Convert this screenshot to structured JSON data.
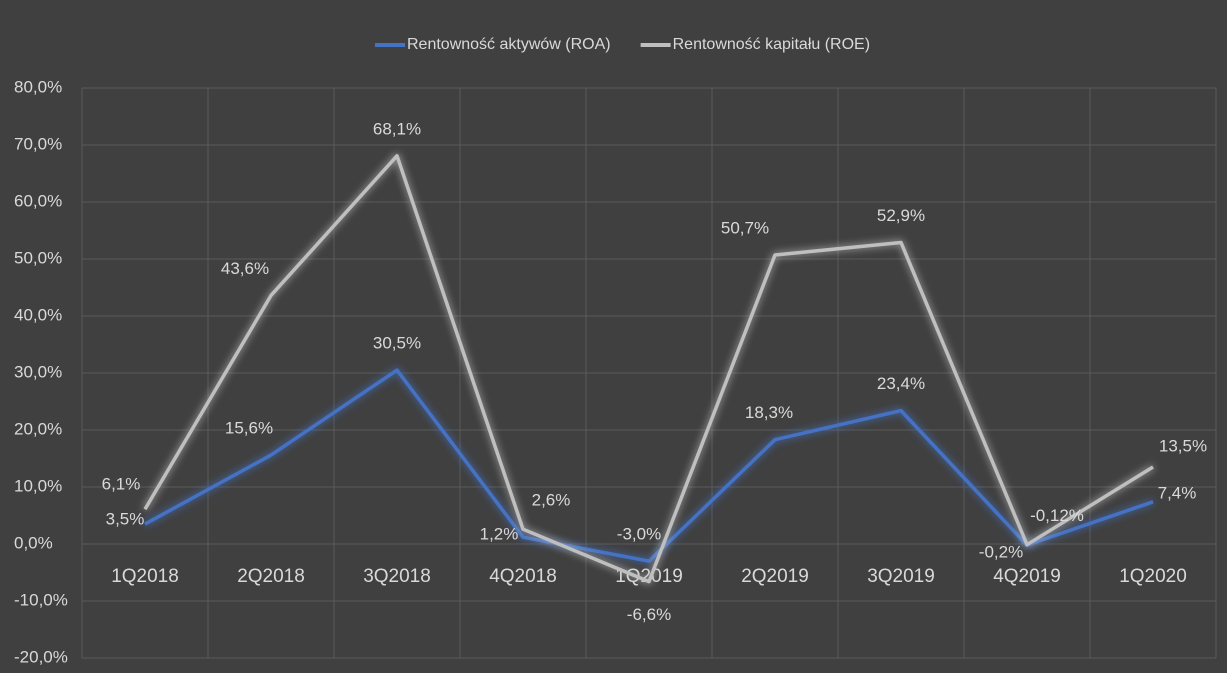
{
  "chart_data": {
    "type": "line",
    "categories": [
      "1Q2018",
      "2Q2018",
      "3Q2018",
      "4Q2018",
      "1Q2019",
      "2Q2019",
      "3Q2019",
      "4Q2019",
      "1Q2020"
    ],
    "series": [
      {
        "name": "Rentowność aktywów (ROA)",
        "color": "#4472c4",
        "values": [
          3.5,
          15.6,
          30.5,
          1.2,
          -3.0,
          18.3,
          23.4,
          -0.2,
          7.4
        ],
        "value_labels": [
          "3,5%",
          "15,6%",
          "30,5%",
          "1,2%",
          "-3,0%",
          "18,3%",
          "23,4%",
          "-0,2%",
          "7,4%"
        ]
      },
      {
        "name": "Rentowność kapitału (ROE)",
        "color": "#bfbfbf",
        "values": [
          6.1,
          43.6,
          68.1,
          2.6,
          -6.6,
          50.7,
          52.9,
          -0.12,
          13.5
        ],
        "value_labels": [
          "6,1%",
          "43,6%",
          "68,1%",
          "2,6%",
          "-6,6%",
          "50,7%",
          "52,9%",
          "-0,12%",
          "13,5%"
        ]
      }
    ],
    "ylim": [
      -20,
      80
    ],
    "yticks": [
      {
        "value": -20,
        "label": "-20,0%"
      },
      {
        "value": -10,
        "label": "-10,0%"
      },
      {
        "value": 0,
        "label": "0,0%"
      },
      {
        "value": 10,
        "label": "10,0%"
      },
      {
        "value": 20,
        "label": "20,0%"
      },
      {
        "value": 30,
        "label": "30,0%"
      },
      {
        "value": 40,
        "label": "40,0%"
      },
      {
        "value": 50,
        "label": "50,0%"
      },
      {
        "value": 60,
        "label": "60,0%"
      },
      {
        "value": 70,
        "label": "70,0%"
      },
      {
        "value": 80,
        "label": "80,0%"
      }
    ],
    "grid": true,
    "legend": "top"
  }
}
